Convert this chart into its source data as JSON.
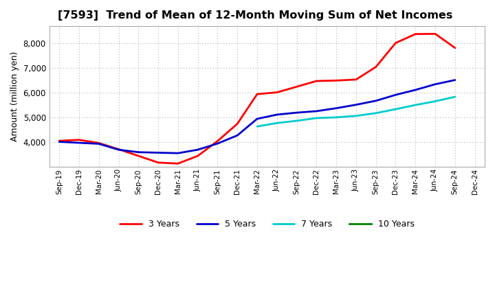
{
  "title": "[7593]  Trend of Mean of 12-Month Moving Sum of Net Incomes",
  "ylabel": "Amount (million yen)",
  "background_color": "#ffffff",
  "plot_bg_color": "#ffffff",
  "grid_color": "#999999",
  "x_labels": [
    "Sep-19",
    "Dec-19",
    "Mar-20",
    "Jun-20",
    "Sep-20",
    "Dec-20",
    "Mar-21",
    "Jun-21",
    "Sep-21",
    "Dec-21",
    "Mar-22",
    "Jun-22",
    "Sep-22",
    "Dec-22",
    "Mar-23",
    "Jun-23",
    "Sep-23",
    "Dec-23",
    "Mar-24",
    "Jun-24",
    "Sep-24",
    "Dec-24"
  ],
  "ylim": [
    3000,
    8700
  ],
  "yticks": [
    4000,
    5000,
    6000,
    7000,
    8000
  ],
  "series": {
    "3 Years": {
      "color": "#ff0000",
      "data_x": [
        0,
        1,
        2,
        3,
        4,
        5,
        6,
        7,
        8,
        9,
        10,
        11,
        12,
        13,
        14,
        15,
        16,
        17,
        18,
        19,
        20
      ],
      "data_y": [
        4060,
        4100,
        3970,
        3720,
        3450,
        3180,
        3140,
        3450,
        4050,
        4750,
        5950,
        6020,
        6250,
        6480,
        6500,
        6540,
        7050,
        8020,
        8380,
        8390,
        7820
      ]
    },
    "5 Years": {
      "color": "#0000cc",
      "data_x": [
        0,
        1,
        2,
        3,
        4,
        5,
        6,
        7,
        8,
        9,
        10,
        11,
        12,
        13,
        14,
        15,
        16,
        17,
        18,
        19,
        20
      ],
      "data_y": [
        4020,
        3980,
        3940,
        3700,
        3600,
        3580,
        3560,
        3700,
        3950,
        4280,
        4950,
        5120,
        5200,
        5260,
        5380,
        5520,
        5680,
        5920,
        6120,
        6350,
        6520
      ]
    },
    "7 Years": {
      "color": "#00cccc",
      "data_x": [
        10,
        11,
        12,
        13,
        14,
        15,
        16,
        17,
        18,
        19,
        20
      ],
      "data_y": [
        4640,
        4780,
        4870,
        4980,
        5010,
        5070,
        5180,
        5340,
        5510,
        5660,
        5840
      ]
    },
    "10 Years": {
      "color": "#008000",
      "data_x": [],
      "data_y": []
    }
  },
  "legend_labels": [
    "3 Years",
    "5 Years",
    "7 Years",
    "10 Years"
  ],
  "legend_colors": [
    "#ff0000",
    "#0000cc",
    "#00cccc",
    "#008000"
  ],
  "linewidth": 2.0
}
